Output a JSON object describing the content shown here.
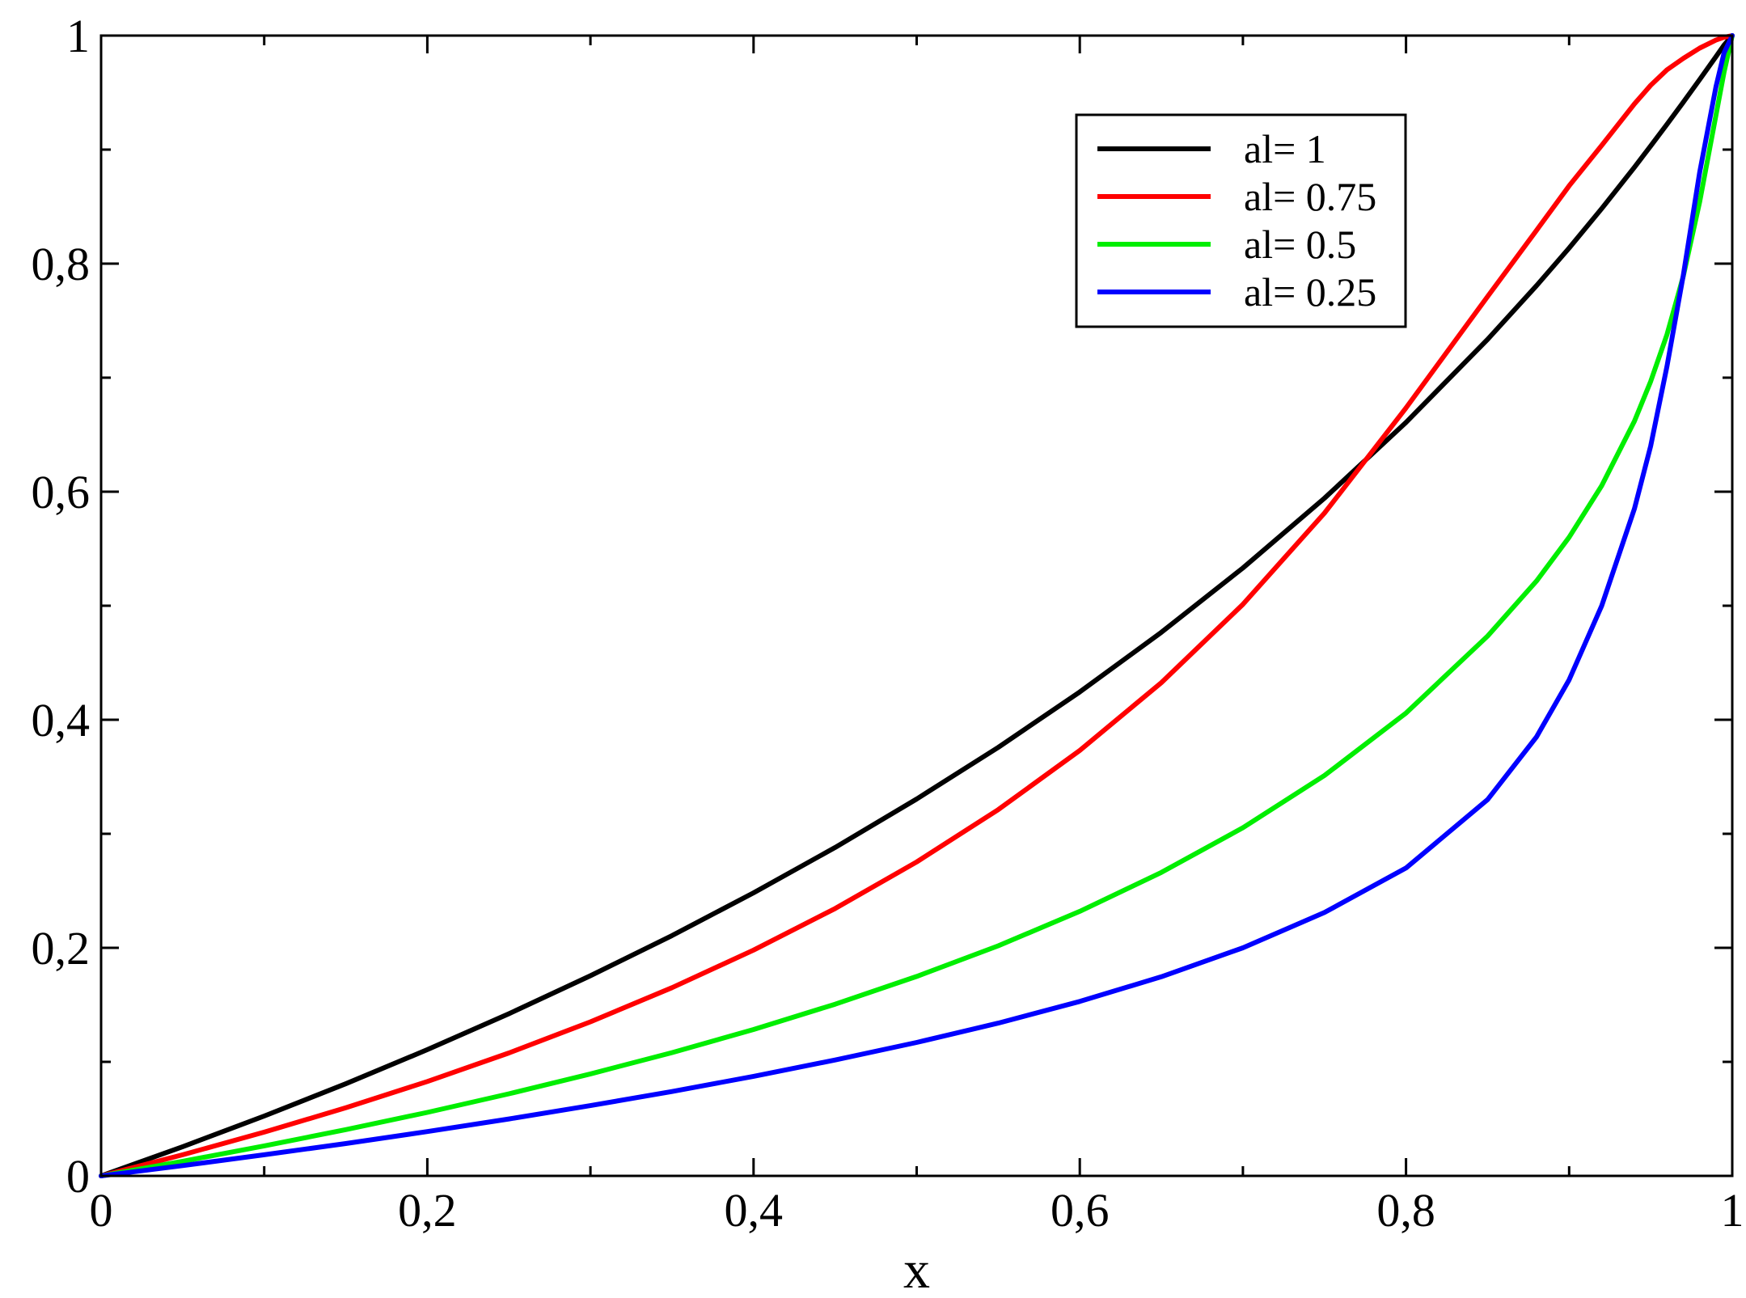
{
  "chart_data": {
    "type": "line",
    "title": "",
    "xlabel": "x",
    "ylabel": "",
    "xlim": [
      0,
      1
    ],
    "ylim": [
      0,
      1
    ],
    "x_major_ticks": [
      0,
      0.2,
      0.4,
      0.6,
      0.8,
      1
    ],
    "y_major_ticks": [
      0,
      0.2,
      0.4,
      0.6,
      0.8,
      1
    ],
    "x_tick_labels": [
      "0",
      "0,2",
      "0,4",
      "0,6",
      "0,8",
      "1"
    ],
    "y_tick_labels": [
      "0",
      "0,2",
      "0,4",
      "0,6",
      "0,8",
      "1"
    ],
    "x_minor_ticks": [
      0.1,
      0.3,
      0.5,
      0.7,
      0.9
    ],
    "y_minor_ticks": [
      0.1,
      0.3,
      0.5,
      0.7,
      0.9
    ],
    "grid": false,
    "legend_position": "top-right",
    "x": [
      0,
      0.05,
      0.1,
      0.15,
      0.2,
      0.25,
      0.3,
      0.35,
      0.4,
      0.45,
      0.5,
      0.55,
      0.6,
      0.65,
      0.7,
      0.75,
      0.8,
      0.85,
      0.88,
      0.9,
      0.92,
      0.94,
      0.95,
      0.96,
      0.97,
      0.98,
      0.99,
      0.995,
      1.0
    ],
    "series": [
      {
        "name": "al= 1",
        "color": "#000000",
        "values": [
          0,
          0.0256,
          0.0525,
          0.0808,
          0.1107,
          0.1422,
          0.1755,
          0.2107,
          0.2482,
          0.288,
          0.3305,
          0.3758,
          0.4244,
          0.4767,
          0.5331,
          0.5943,
          0.6608,
          0.7336,
          0.7807,
          0.8137,
          0.8483,
          0.8845,
          0.9032,
          0.9222,
          0.9416,
          0.9614,
          0.9815,
          0.9917,
          1.0
        ]
      },
      {
        "name": "al= 0.75",
        "color": "#ff0000",
        "values": [
          0,
          0.0185,
          0.0384,
          0.0597,
          0.0828,
          0.1078,
          0.1351,
          0.165,
          0.198,
          0.2345,
          0.2753,
          0.3212,
          0.3731,
          0.4325,
          0.5012,
          0.5813,
          0.6735,
          0.7712,
          0.8292,
          0.8682,
          0.9037,
          0.9401,
          0.9564,
          0.97,
          0.98,
          0.989,
          0.996,
          0.9985,
          1.0
        ]
      },
      {
        "name": "al= 0.5",
        "color": "#00ee00",
        "values": [
          0,
          0.0128,
          0.0263,
          0.0406,
          0.0557,
          0.072,
          0.0894,
          0.1081,
          0.1284,
          0.1506,
          0.1749,
          0.2018,
          0.232,
          0.2661,
          0.3053,
          0.3511,
          0.4059,
          0.4734,
          0.5217,
          0.5601,
          0.6053,
          0.6618,
          0.6967,
          0.7379,
          0.7891,
          0.8541,
          0.9299,
          0.968,
          1.0
        ]
      },
      {
        "name": "al= 0.25",
        "color": "#0000ff",
        "values": [
          0,
          0.009,
          0.0185,
          0.0284,
          0.0389,
          0.0499,
          0.0616,
          0.074,
          0.0873,
          0.1016,
          0.117,
          0.134,
          0.153,
          0.1746,
          0.2,
          0.231,
          0.27,
          0.33,
          0.385,
          0.435,
          0.5,
          0.585,
          0.64,
          0.71,
          0.79,
          0.88,
          0.955,
          0.985,
          1.0
        ]
      }
    ]
  }
}
